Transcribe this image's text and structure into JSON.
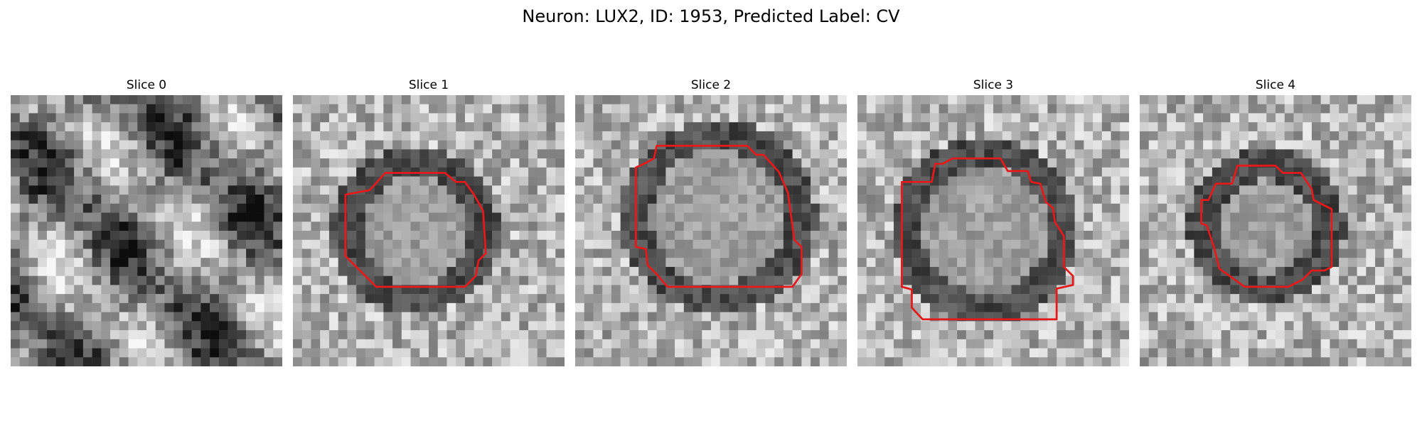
{
  "figure": {
    "title": "Neuron: LUX2, ID: 1953, Predicted Label: CV"
  },
  "panels": [
    {
      "title": "Slice 0",
      "has_contour": false
    },
    {
      "title": "Slice 1",
      "has_contour": true
    },
    {
      "title": "Slice 2",
      "has_contour": true
    },
    {
      "title": "Slice 3",
      "has_contour": true
    },
    {
      "title": "Slice 4",
      "has_contour": true
    }
  ],
  "colors": {
    "contour": "#e41a1c"
  }
}
